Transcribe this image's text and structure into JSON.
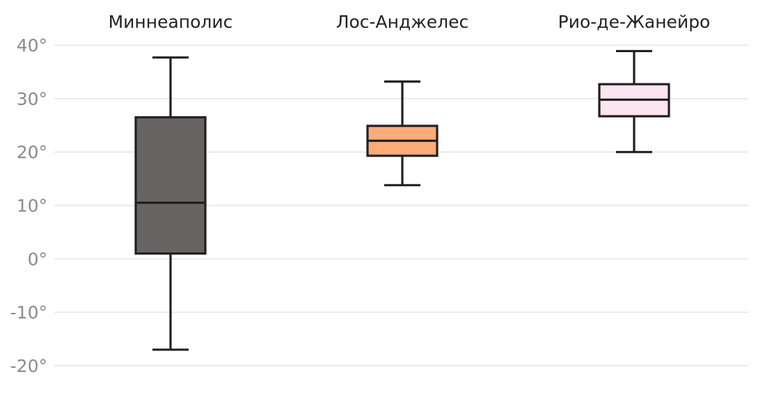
{
  "chart_data": {
    "type": "box",
    "title": "",
    "xlabel": "",
    "ylabel": "",
    "y_unit_suffix": "°",
    "ylim": [
      -20,
      40
    ],
    "y_ticks": [
      {
        "value": 40,
        "label": "40°"
      },
      {
        "value": 30,
        "label": "30°"
      },
      {
        "value": 20,
        "label": "20°"
      },
      {
        "value": 10,
        "label": "10°"
      },
      {
        "value": 0,
        "label": "0°"
      },
      {
        "value": -10,
        "label": "-10°"
      },
      {
        "value": -20,
        "label": "-20°"
      }
    ],
    "grid": true,
    "legend": "none",
    "category_label_position": "top",
    "categories": [
      "Миннеаполис",
      "Лос-Анджелес",
      "Рио-де-Жанейро"
    ],
    "boxes": [
      {
        "category": "Миннеаполис",
        "min": -17,
        "q1": 1,
        "median": 10.5,
        "q3": 26.5,
        "max": 37.7,
        "color": "#676464"
      },
      {
        "category": "Лос-Анджелес",
        "min": 13.8,
        "q1": 19.3,
        "median": 22.1,
        "q3": 24.9,
        "max": 33.2,
        "color": "#fbab77"
      },
      {
        "category": "Рио-де-Жанейро",
        "min": 20,
        "q1": 26.7,
        "median": 29.8,
        "q3": 32.7,
        "max": 38.9,
        "color": "#fce4f1"
      }
    ]
  }
}
